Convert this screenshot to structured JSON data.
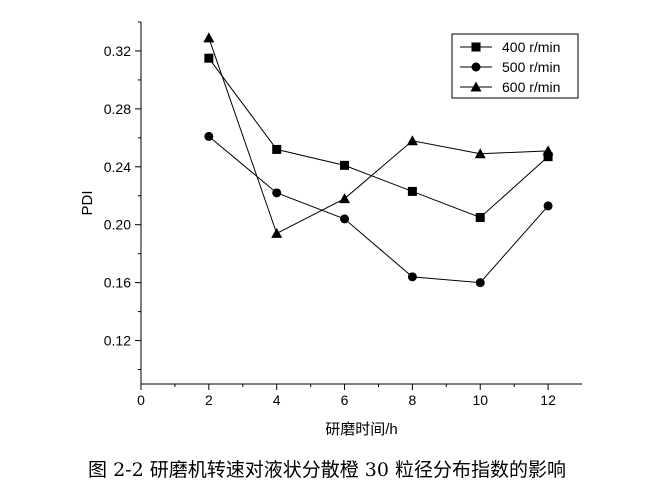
{
  "caption": "图 2-2  研磨机转速对液状分散橙 30 粒径分布指数的影响",
  "chart_data": {
    "type": "line",
    "title": "",
    "xlabel": "研磨时间/h",
    "ylabel": "PDI",
    "xlim": [
      0,
      13
    ],
    "ylim": [
      0.09,
      0.34
    ],
    "xticks": [
      0,
      2,
      4,
      6,
      8,
      10,
      12
    ],
    "xticklabels": [
      "0",
      "2",
      "4",
      "6",
      "8",
      "10",
      "12"
    ],
    "yticks": [
      0.12,
      0.16,
      0.2,
      0.24,
      0.28,
      0.32
    ],
    "yticklabels": [
      "0.12",
      "0.16",
      "0.20",
      "0.24",
      "0.28",
      "0.32"
    ],
    "grid": false,
    "legend_position": "top-right",
    "x": [
      2,
      4,
      6,
      8,
      10,
      12
    ],
    "series": [
      {
        "name": "400 r/min",
        "marker": "square",
        "values": [
          0.315,
          0.252,
          0.241,
          0.223,
          0.205,
          0.247
        ]
      },
      {
        "name": "500 r/min",
        "marker": "circle",
        "values": [
          0.261,
          0.222,
          0.204,
          0.164,
          0.16,
          0.213
        ]
      },
      {
        "name": "600 r/min",
        "marker": "triangle",
        "values": [
          0.329,
          0.194,
          0.218,
          0.258,
          0.249,
          0.251
        ]
      }
    ],
    "line_color": "#000000"
  }
}
